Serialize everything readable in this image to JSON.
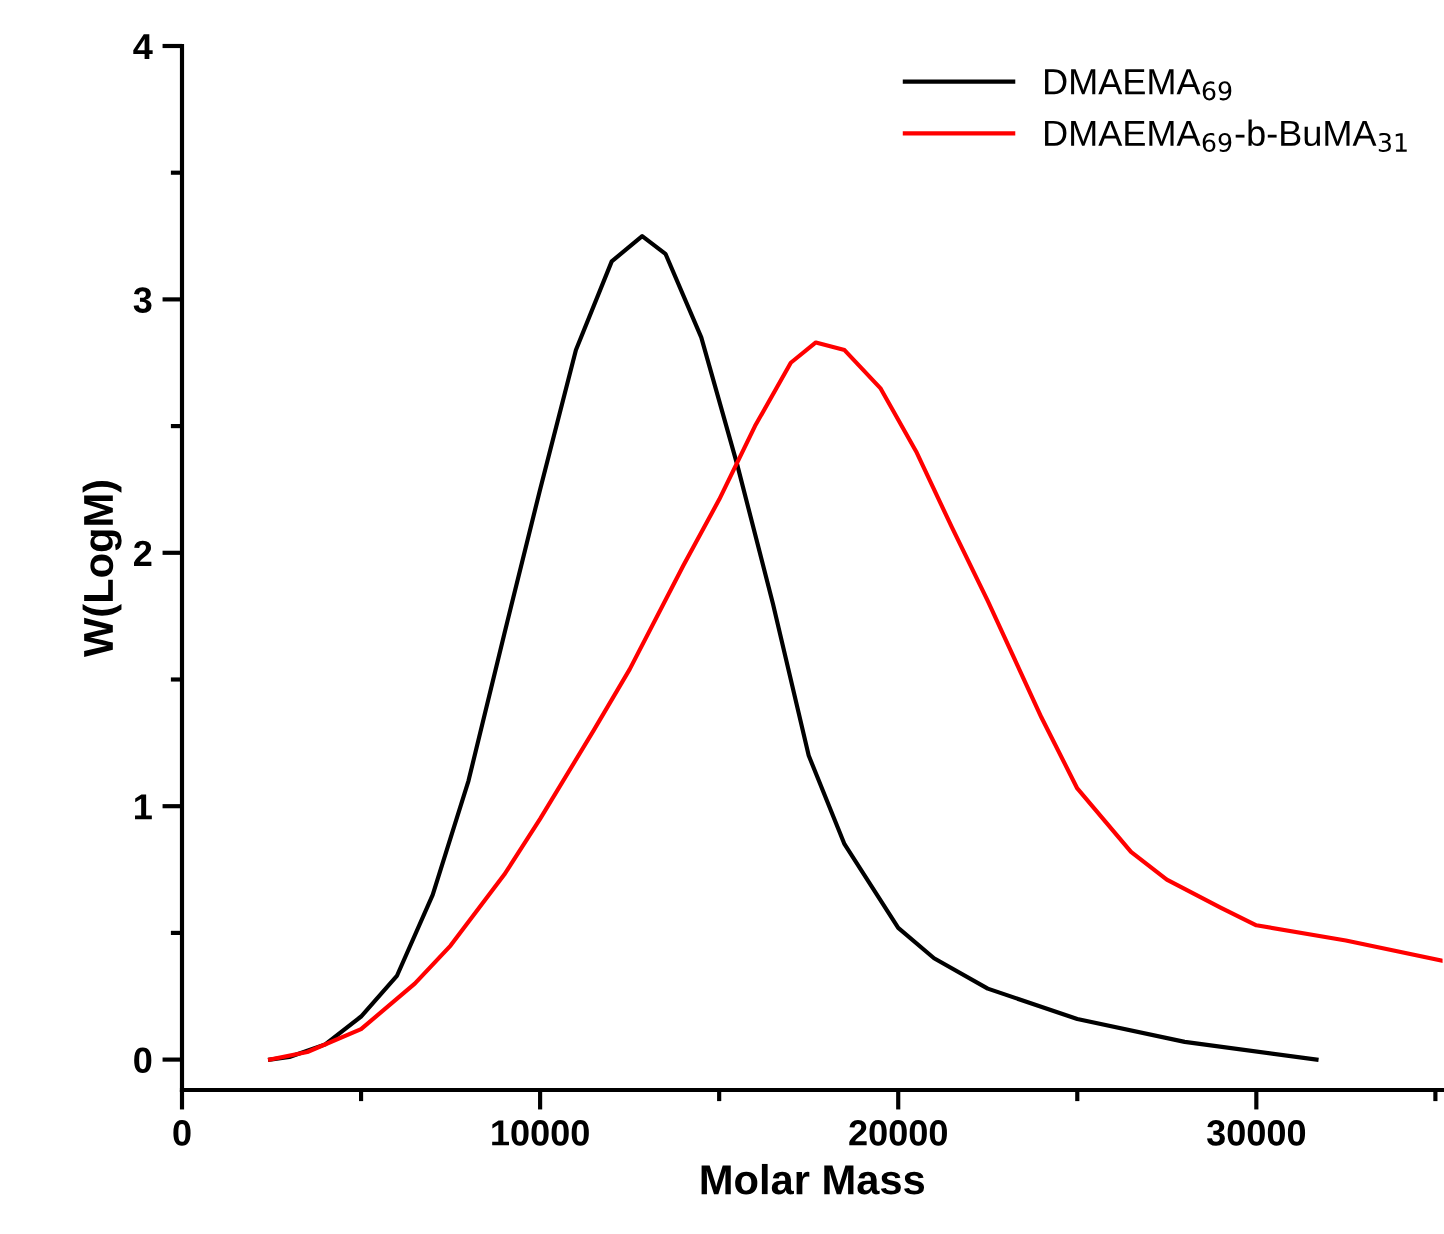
{
  "chart_data": {
    "type": "line",
    "xlabel": "Molar Mass",
    "ylabel": "W(LogM)",
    "xlim": [
      0,
      35200
    ],
    "ylim": [
      -0.12,
      4
    ],
    "xticks": [
      0,
      10000,
      20000,
      30000
    ],
    "yticks": [
      0,
      1,
      2,
      3,
      4
    ],
    "grid": false,
    "legend": "top right",
    "marker": "none",
    "line_style": "solid",
    "series": [
      {
        "name": "DMAEMA$_{69}$",
        "color": "#000000",
        "x": [
          2460,
          3000,
          4000,
          5000,
          6000,
          7000,
          8000,
          9000,
          10000,
          11000,
          12000,
          12850,
          13500,
          14500,
          15500,
          16500,
          17500,
          18500,
          20000,
          21000,
          22500,
          25000,
          28000,
          31680
        ],
        "values": [
          0,
          0.01,
          0.06,
          0.17,
          0.33,
          0.65,
          1.1,
          1.68,
          2.25,
          2.8,
          3.15,
          3.25,
          3.18,
          2.85,
          2.35,
          1.8,
          1.2,
          0.85,
          0.52,
          0.4,
          0.28,
          0.16,
          0.07,
          0
        ]
      },
      {
        "name": "DMAEMA$_{69}$-b-BuMA$_{31}$",
        "color": "#ff0000",
        "x": [
          2460,
          3500,
          5000,
          6500,
          7500,
          9000,
          10000,
          11500,
          12500,
          14000,
          15000,
          16000,
          17000,
          17700,
          18500,
          19500,
          20500,
          21500,
          22500,
          24000,
          25000,
          26500,
          27500,
          29000,
          30000,
          32500,
          35200
        ],
        "values": [
          0,
          0.03,
          0.12,
          0.3,
          0.45,
          0.73,
          0.95,
          1.3,
          1.54,
          1.95,
          2.21,
          2.5,
          2.75,
          2.83,
          2.8,
          2.65,
          2.4,
          2.1,
          1.81,
          1.35,
          1.07,
          0.82,
          0.71,
          0.6,
          0.53,
          0.47,
          0.39
        ]
      }
    ]
  }
}
